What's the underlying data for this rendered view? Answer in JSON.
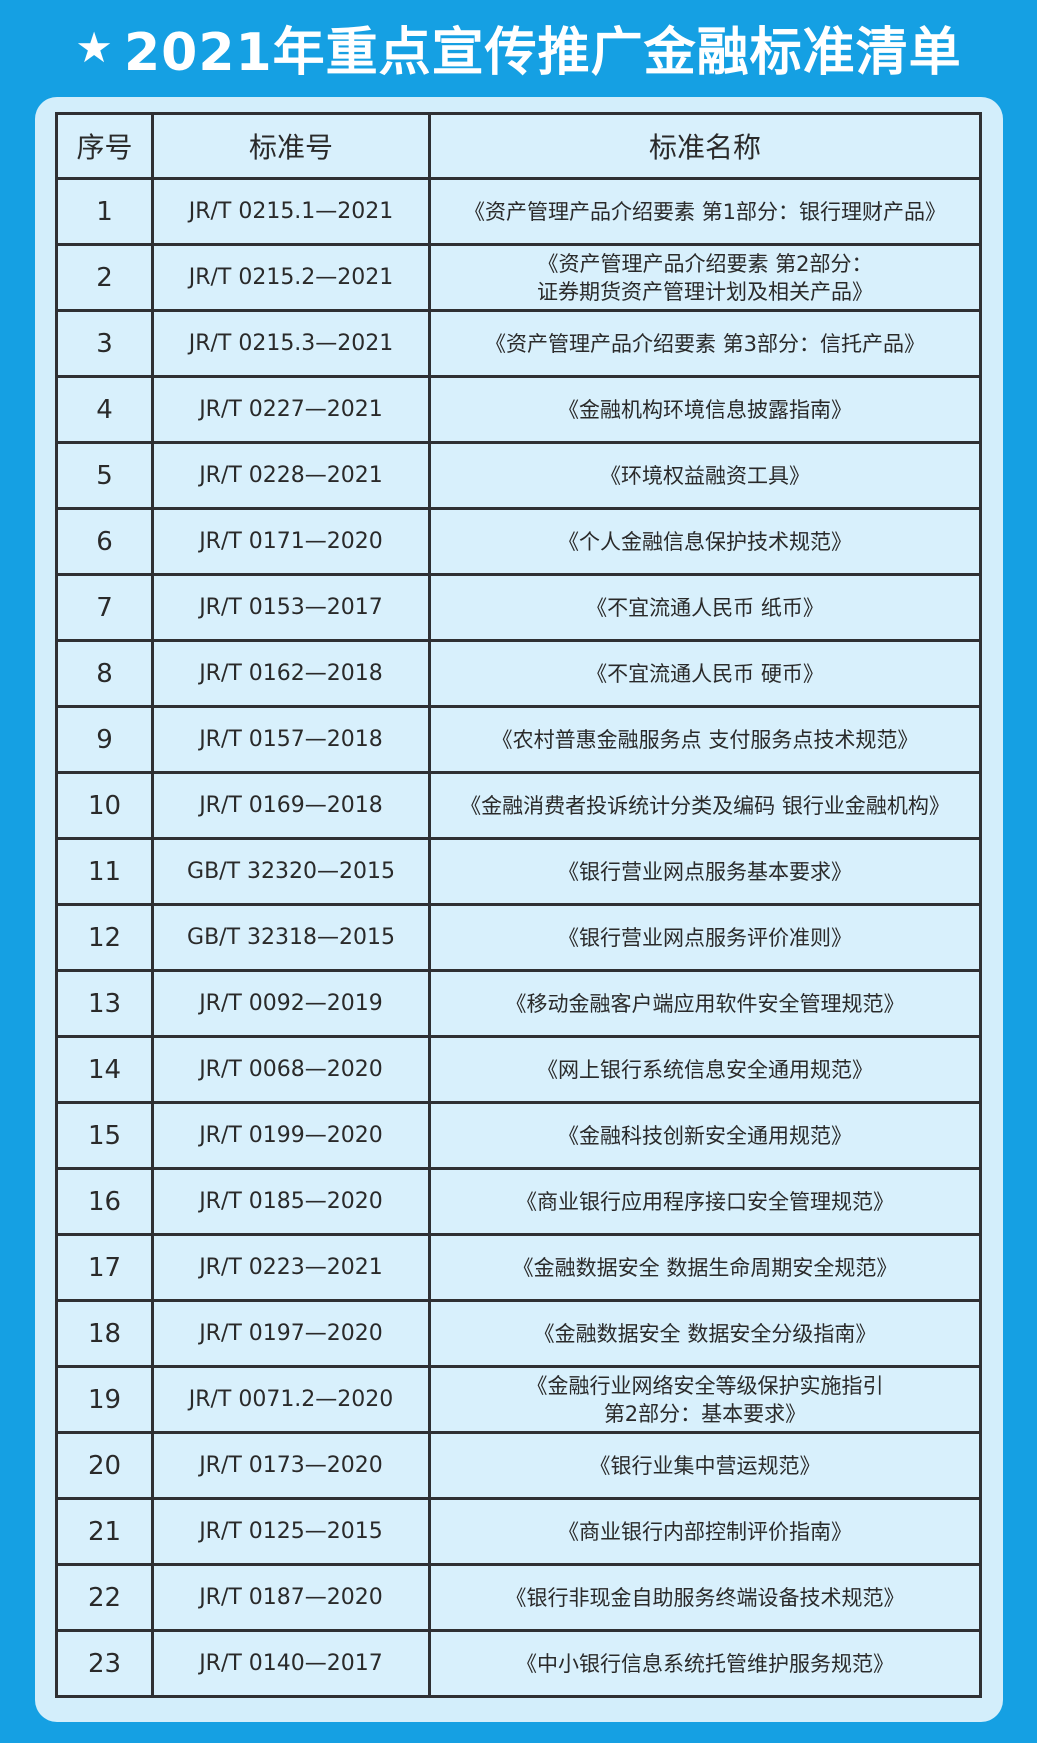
{
  "title": {
    "icon": "star-icon",
    "text": "2021年重点宣传推广金融标准清单"
  },
  "table": {
    "headers": [
      "序号",
      "标准号",
      "标准名称"
    ],
    "rows": [
      {
        "no": "1",
        "code": "JR/T 0215.1—2021",
        "name": "《资产管理产品介绍要素 第1部分：银行理财产品》"
      },
      {
        "no": "2",
        "code": "JR/T 0215.2—2021",
        "name": "《资产管理产品介绍要素 第2部分：\n证券期货资产管理计划及相关产品》"
      },
      {
        "no": "3",
        "code": "JR/T 0215.3—2021",
        "name": "《资产管理产品介绍要素 第3部分：信托产品》"
      },
      {
        "no": "4",
        "code": "JR/T 0227—2021",
        "name": "《金融机构环境信息披露指南》"
      },
      {
        "no": "5",
        "code": "JR/T 0228—2021",
        "name": "《环境权益融资工具》"
      },
      {
        "no": "6",
        "code": "JR/T 0171—2020",
        "name": "《个人金融信息保护技术规范》"
      },
      {
        "no": "7",
        "code": "JR/T 0153—2017",
        "name": "《不宜流通人民币 纸币》"
      },
      {
        "no": "8",
        "code": "JR/T 0162—2018",
        "name": "《不宜流通人民币 硬币》"
      },
      {
        "no": "9",
        "code": "JR/T 0157—2018",
        "name": "《农村普惠金融服务点 支付服务点技术规范》"
      },
      {
        "no": "10",
        "code": "JR/T 0169—2018",
        "name": "《金融消费者投诉统计分类及编码 银行业金融机构》"
      },
      {
        "no": "11",
        "code": "GB/T 32320—2015",
        "name": "《银行营业网点服务基本要求》"
      },
      {
        "no": "12",
        "code": "GB/T 32318—2015",
        "name": "《银行营业网点服务评价准则》"
      },
      {
        "no": "13",
        "code": "JR/T 0092—2019",
        "name": "《移动金融客户端应用软件安全管理规范》"
      },
      {
        "no": "14",
        "code": "JR/T 0068—2020",
        "name": "《网上银行系统信息安全通用规范》"
      },
      {
        "no": "15",
        "code": "JR/T 0199—2020",
        "name": "《金融科技创新安全通用规范》"
      },
      {
        "no": "16",
        "code": "JR/T 0185—2020",
        "name": "《商业银行应用程序接口安全管理规范》"
      },
      {
        "no": "17",
        "code": "JR/T 0223—2021",
        "name": "《金融数据安全 数据生命周期安全规范》"
      },
      {
        "no": "18",
        "code": "JR/T 0197—2020",
        "name": "《金融数据安全 数据安全分级指南》"
      },
      {
        "no": "19",
        "code": "JR/T 0071.2—2020",
        "name": "《金融行业网络安全等级保护实施指引\n第2部分：基本要求》"
      },
      {
        "no": "20",
        "code": "JR/T 0173—2020",
        "name": "《银行业集中营运规范》"
      },
      {
        "no": "21",
        "code": "JR/T 0125—2015",
        "name": "《商业银行内部控制评价指南》"
      },
      {
        "no": "22",
        "code": "JR/T 0187—2020",
        "name": "《银行非现金自助服务终端设备技术规范》"
      },
      {
        "no": "23",
        "code": "JR/T 0140—2017",
        "name": "《中小银行信息系统托管维护服务规范》"
      }
    ]
  }
}
